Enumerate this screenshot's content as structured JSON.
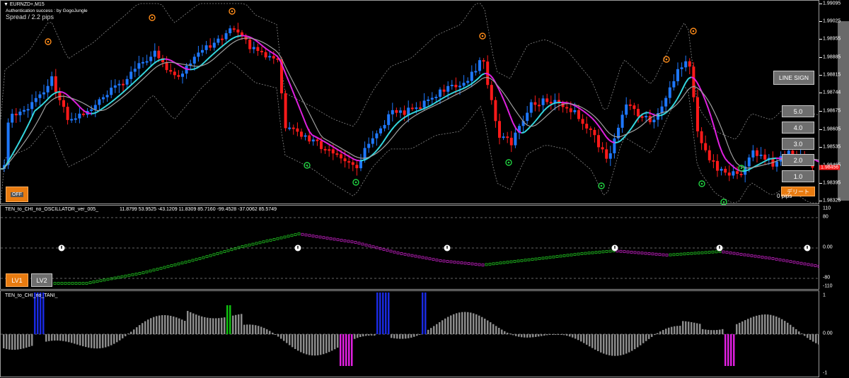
{
  "symbol_label": "EURNZD+,M15",
  "auth_text": "Authentication success : by GogoJungle",
  "spread_text": "Spread / 2.2 pips",
  "price_axis": [
    "1.99095",
    "1.99025",
    "1.98955",
    "1.98885",
    "1.98815",
    "1.98744",
    "1.98675",
    "1.98605",
    "1.98535",
    "1.98465",
    "1.98395",
    "1.98325"
  ],
  "current_price_label": "1.98456",
  "buttons": {
    "line_sign": "LINE SIGN",
    "levels": [
      "5.0",
      "4.0",
      "3.0",
      "2.0",
      "1.0"
    ],
    "off": "OFF",
    "lv1": "LV1",
    "lv2": "LV2",
    "delete_label": "デリート",
    "pips_label": "0 pips"
  },
  "oscillator": {
    "title": "TEN_to_CHI_no_OSCILLATOR_ver_005_",
    "values": "11.8799 53.9525 -43.1209 11.8309 85.7160 -99.4528 -37.0062 85.5749",
    "axis": [
      "110",
      "80",
      "0.00",
      "-80",
      "-110"
    ]
  },
  "histogram": {
    "title": "TEN_to_CHI_no_TANI_",
    "axis": [
      "1",
      "0.00",
      "-1"
    ]
  },
  "colors": {
    "bull": "#1e78ff",
    "bear": "#ff1a1a",
    "ma_up": "#34d8e0",
    "ma_down": "#e020e0",
    "band": "#8a8a8a",
    "osc_up": "#20c020",
    "osc_down": "#c020c0",
    "hist_gray": "#8c8c8c",
    "hist_blue": "#1a2ae0",
    "hist_magenta": "#e020e0",
    "hist_green": "#10c010",
    "buy_signal": "#20d040",
    "sell_signal": "#ff8c1a",
    "orange_btn": "#e87b10"
  }
}
